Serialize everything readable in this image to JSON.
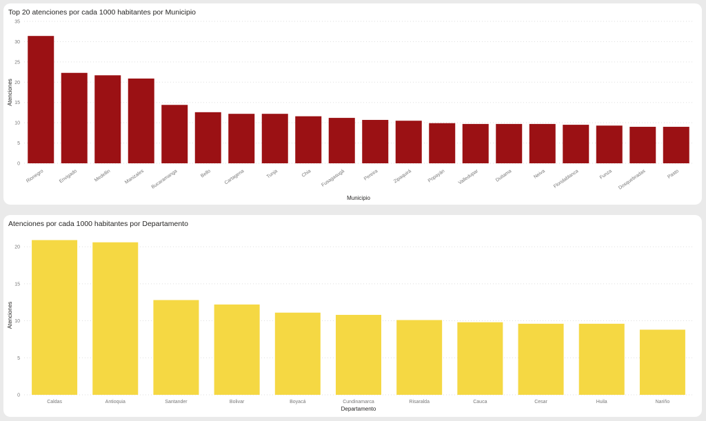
{
  "chart_data": [
    {
      "type": "bar",
      "title": "Top 20 atenciones por cada 1000 habitantes por Municipio",
      "xlabel": "Municipio",
      "ylabel": "Atenciones",
      "ylim": [
        0,
        35
      ],
      "yticks": [
        0,
        5,
        10,
        15,
        20,
        25,
        30,
        35
      ],
      "grid": true,
      "color": "#9b1114",
      "categories": [
        "Rionegro",
        "Envigado",
        "Medellin",
        "Manizales",
        "Bucaramanga",
        "Bello",
        "Cartagena",
        "Tunja",
        "Chia",
        "Fusagasugá",
        "Pereira",
        "Zipaquirá",
        "Popayán",
        "Valledupar",
        "Duitama",
        "Neiva",
        "Floridablanca",
        "Funza",
        "Dosquebradas",
        "Pasto"
      ],
      "values": [
        31.4,
        22.3,
        21.7,
        20.9,
        14.4,
        12.6,
        12.2,
        12.2,
        11.6,
        11.2,
        10.7,
        10.5,
        9.9,
        9.7,
        9.7,
        9.7,
        9.5,
        9.3,
        9.0,
        9.0
      ]
    },
    {
      "type": "bar",
      "title": "Atenciones por cada 1000 habitantes por Departamento",
      "xlabel": "Departamento",
      "ylabel": "Atenciones",
      "ylim": [
        0,
        21.5
      ],
      "yticks": [
        0,
        5,
        10,
        15,
        20
      ],
      "grid": true,
      "color": "#f5d843",
      "categories": [
        "Caldas",
        "Antioquia",
        "Santander",
        "Bolivar",
        "Boyacá",
        "Cundinamarca",
        "Risaralda",
        "Cauca",
        "Cesar",
        "Huila",
        "Nariño"
      ],
      "values": [
        20.9,
        20.6,
        12.8,
        12.2,
        11.1,
        10.8,
        10.1,
        9.8,
        9.6,
        9.6,
        8.8
      ]
    }
  ]
}
